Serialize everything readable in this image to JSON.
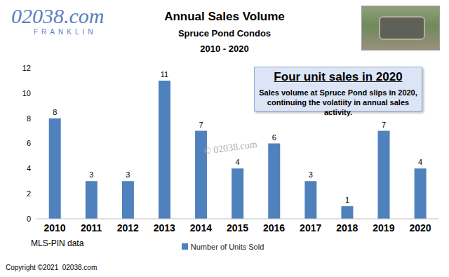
{
  "chart_data": {
    "type": "bar",
    "title": "Annual Sales Volume",
    "subtitle": "Spruce Pond Condos",
    "annotations": [
      "02038.com",
      "FRANKLIN",
      "2010 - 2020",
      "Four unit sales in 2020",
      "Sales volume at Spruce Pond slips in 2020,",
      "continuing the volatiity in annual sales activity.",
      "© 02038.com",
      "MLS-PIN data",
      "Copyright ©2021  02038.com"
    ],
    "categories": [
      "2010",
      "2011",
      "2012",
      "2013",
      "2014",
      "2015",
      "2016",
      "2017",
      "2018",
      "2019",
      "2020"
    ],
    "series": [
      {
        "name": "Number of Units Sold",
        "color": "#4f81bd",
        "values": [
          8,
          3,
          3,
          11,
          7,
          4,
          6,
          3,
          1,
          7,
          4
        ]
      }
    ],
    "ylim": [
      0,
      12
    ],
    "yticks": [
      0,
      2,
      4,
      6,
      8,
      10,
      12
    ],
    "grid": false,
    "legend": "bottom",
    "data_labels": true
  }
}
